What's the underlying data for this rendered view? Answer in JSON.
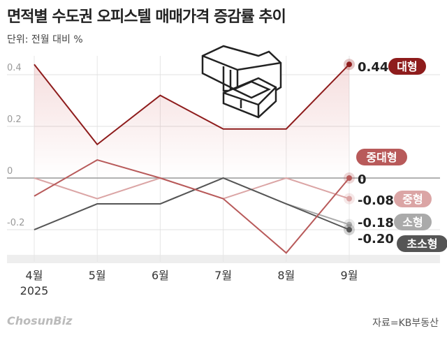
{
  "chart_data": {
    "type": "line",
    "title": "면적별 수도권 오피스텔 매매가격 증감률 추이",
    "subtitle": "단위: 전월 대비 %",
    "categories": [
      "4월",
      "5월",
      "6월",
      "7월",
      "8월",
      "9월"
    ],
    "x_sub_label": "2025",
    "yticks": [
      0.4,
      0.2,
      0,
      -0.2
    ],
    "ytick_labels": [
      "0.4",
      "0.2",
      "0",
      "-0.2"
    ],
    "ylim": [
      -0.33,
      0.47
    ],
    "grid": true,
    "series": [
      {
        "name": "대형",
        "color": "#8e1c1c",
        "values": [
          0.44,
          0.13,
          0.32,
          0.19,
          0.19,
          0.44
        ],
        "end_label": "0.44"
      },
      {
        "name": "중대형",
        "color": "#b85a5a",
        "values": [
          -0.07,
          0.07,
          0,
          -0.08,
          -0.29,
          0
        ],
        "end_label": "0"
      },
      {
        "name": "중형",
        "color": "#dba5a5",
        "values": [
          0,
          -0.08,
          0,
          -0.08,
          0,
          -0.08
        ],
        "end_label": "-0.08"
      },
      {
        "name": "소형",
        "color": "#aaaaaa",
        "values": [
          -0.2,
          -0.1,
          -0.1,
          0,
          -0.1,
          -0.18
        ],
        "end_label": "-0.18"
      },
      {
        "name": "초소형",
        "color": "#555555",
        "values": [
          -0.2,
          -0.1,
          -0.1,
          0,
          -0.1,
          -0.2
        ],
        "end_label": "-0.20"
      }
    ],
    "source": "자료=KB부동산"
  },
  "logo": "ChosunBiz"
}
